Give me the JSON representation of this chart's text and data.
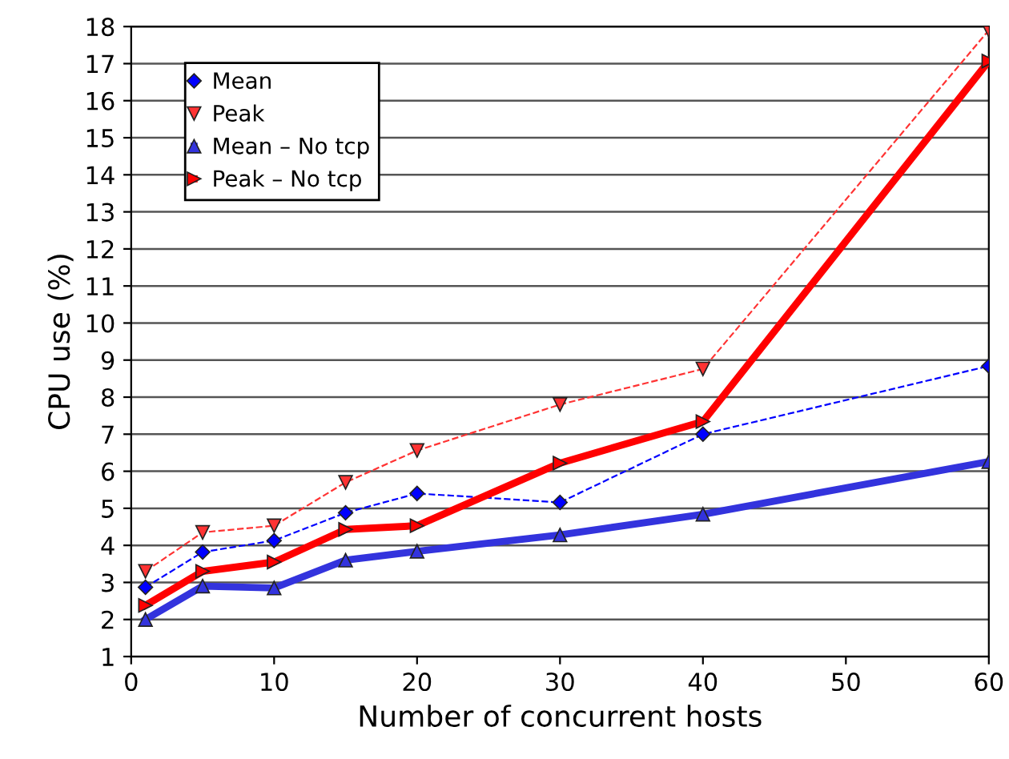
{
  "chart_data": {
    "type": "line",
    "xlabel": "Number of concurrent hosts",
    "ylabel": "CPU use (%)",
    "x": [
      1,
      5,
      10,
      15,
      20,
      30,
      40,
      60
    ],
    "xlim": [
      0,
      60
    ],
    "xticks": [
      0,
      10,
      20,
      30,
      40,
      50,
      60
    ],
    "ylim": [
      1,
      18
    ],
    "yticks": [
      1,
      2,
      3,
      4,
      5,
      6,
      7,
      8,
      9,
      10,
      11,
      12,
      13,
      14,
      15,
      16,
      17,
      18
    ],
    "grid": "y",
    "legend": "top left",
    "series": [
      {
        "name": "Mean",
        "color": "#0000ff",
        "marker": "diamond",
        "line_style": "dashed",
        "values": [
          2.87,
          3.82,
          4.13,
          4.88,
          5.4,
          5.16,
          7.0,
          8.84
        ]
      },
      {
        "name": "Peak",
        "color": "#ff3333",
        "marker": "triangle-down",
        "line_style": "dashed",
        "values": [
          3.3,
          4.35,
          4.53,
          5.7,
          6.56,
          7.8,
          8.76,
          17.9
        ]
      },
      {
        "name": "Mean – No tcp",
        "color": "#3333dd",
        "marker": "triangle",
        "line_style": "solid",
        "values": [
          2.0,
          2.9,
          2.85,
          3.6,
          3.84,
          4.28,
          4.84,
          6.26
        ]
      },
      {
        "name": "Peak – No tcp",
        "color": "#ff0000",
        "marker": "triangle-right",
        "line_style": "solid",
        "values": [
          2.38,
          3.3,
          3.55,
          4.43,
          4.53,
          6.22,
          7.34,
          17.07
        ]
      }
    ]
  }
}
